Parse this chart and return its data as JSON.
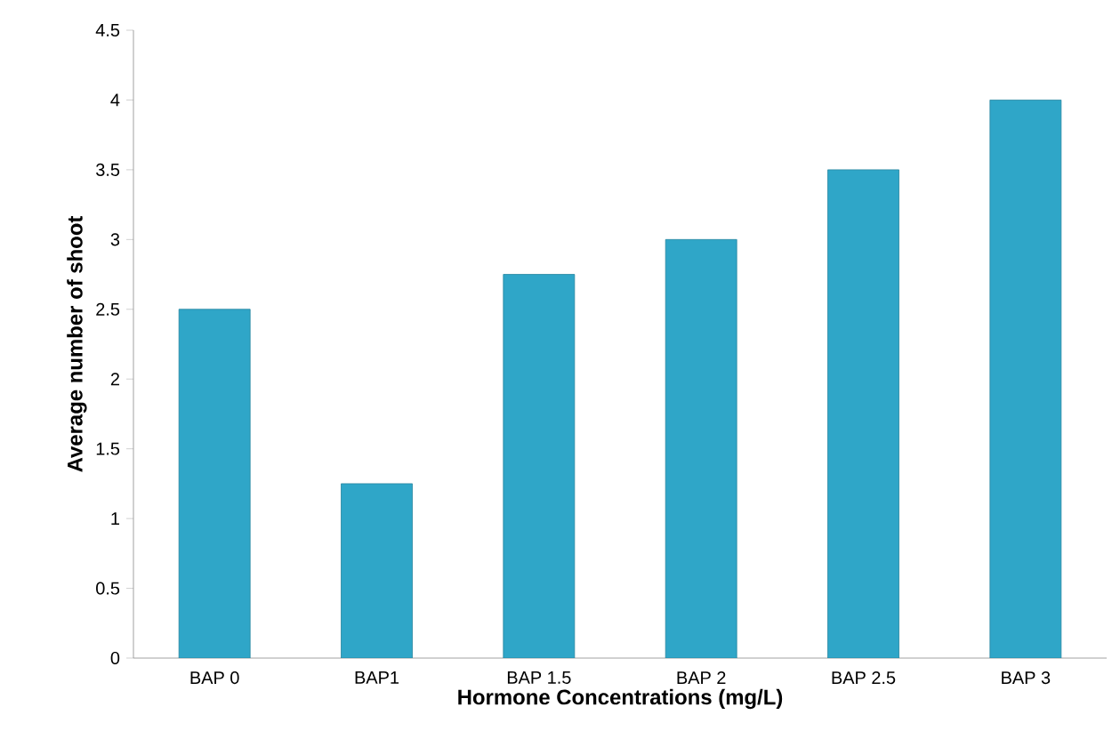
{
  "chart_data": {
    "type": "bar",
    "xlabel": "Hormone Concentrations (mg/L)",
    "ylabel": "Average number of shoot",
    "categories": [
      "BAP 0",
      "BAP1",
      "BAP 1.5",
      "BAP 2",
      "BAP 2.5",
      "BAP 3"
    ],
    "values": [
      2.5,
      1.25,
      2.75,
      3,
      3.5,
      4
    ],
    "color": "#2fa6c8",
    "ylim": [
      0,
      4.5
    ],
    "yticks": [
      0,
      0.5,
      1,
      1.5,
      2,
      2.5,
      3,
      3.5,
      4,
      4.5
    ]
  }
}
